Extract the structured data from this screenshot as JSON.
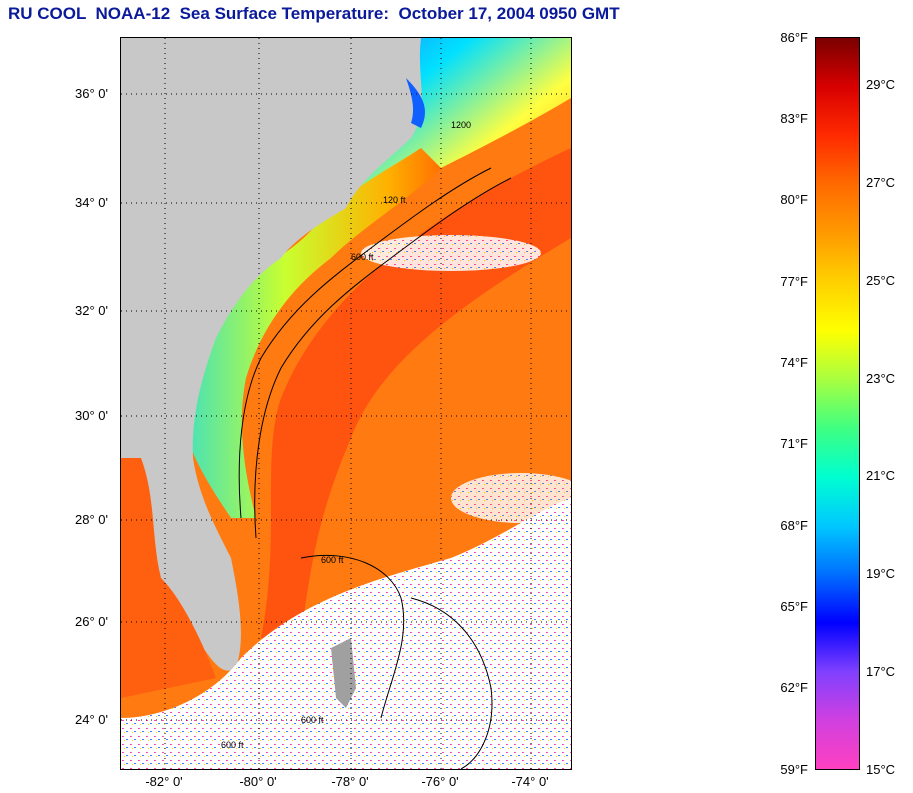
{
  "title": "RU COOL  NOAA-12  Sea Surface Temperature:  October 17, 2004 0950 GMT",
  "map": {
    "lat_labels": [
      "36° 0'",
      "34° 0'",
      "32° 0'",
      "30° 0'",
      "28° 0'",
      "26° 0'",
      "24° 0'"
    ],
    "lon_labels": [
      "-82° 0'",
      "-80° 0'",
      "-78° 0'",
      "-76° 0'",
      "-74° 0'"
    ],
    "contour_labels": [
      "1200",
      "120 ft",
      "600 ft",
      "600 ft",
      "600 ft",
      "600 ft"
    ],
    "land_color": "#c8c8c8",
    "cloud_color": "#ffffff"
  },
  "colorbar": {
    "fahrenheit_labels": [
      "86°F",
      "83°F",
      "80°F",
      "77°F",
      "74°F",
      "71°F",
      "68°F",
      "65°F",
      "62°F",
      "59°F"
    ],
    "celsius_labels": [
      "29°C",
      "27°C",
      "25°C",
      "23°C",
      "21°C",
      "19°C",
      "17°C",
      "15°C"
    ],
    "colors_top_to_bottom": [
      "#7a0000",
      "#d80000",
      "#ff2a00",
      "#ff6a00",
      "#ff9a00",
      "#ffd000",
      "#ffff00",
      "#a8ff40",
      "#40ff80",
      "#00ffd0",
      "#00c8ff",
      "#0070ff",
      "#0000ff",
      "#8040ff",
      "#d040e0",
      "#ff40c0"
    ]
  }
}
